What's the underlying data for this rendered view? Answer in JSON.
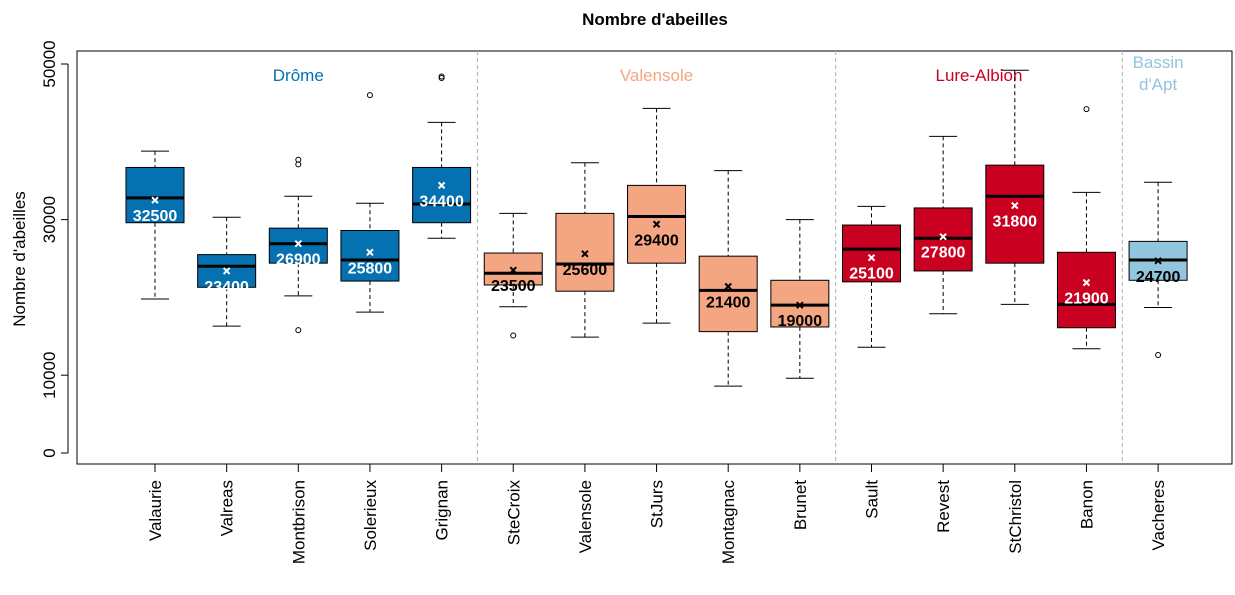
{
  "chart_data": {
    "type": "boxplot",
    "title": "Nombre d'abeilles",
    "ylabel": "Nombre d'abeilles",
    "xlabel": "",
    "ylim": [
      -2000,
      52000
    ],
    "yticks": [
      0,
      10000,
      30000,
      50000
    ],
    "grid": false,
    "groups": [
      {
        "label": "Drôme",
        "color": "#0571b0",
        "text_color": "#0571b0",
        "members": [
          0,
          4
        ]
      },
      {
        "label": "Valensole",
        "color": "#f4a582",
        "text_color": "#f4a582",
        "members": [
          5,
          9
        ]
      },
      {
        "label": "Lure-Albion",
        "color": "#ca0020",
        "text_color": "#ca0020",
        "members": [
          10,
          13
        ]
      },
      {
        "label": "Bassin\nd'Apt",
        "color": "#92c5de",
        "text_color": "#92c5de",
        "members": [
          14,
          14
        ]
      }
    ],
    "boxes": [
      {
        "name": "Valaurie",
        "group": 0,
        "whisker_low": 19800,
        "q1": 29600,
        "median": 32800,
        "q3": 36700,
        "whisker_high": 38800,
        "mean": 32500,
        "mean_label": "32500",
        "label_color": "#ffffff",
        "outliers": []
      },
      {
        "name": "Valreas",
        "group": 0,
        "whisker_low": 16300,
        "q1": 21300,
        "median": 24000,
        "q3": 25500,
        "whisker_high": 30300,
        "mean": 23400,
        "mean_label": "23400",
        "label_color": "#ffffff",
        "outliers": []
      },
      {
        "name": "Montbrison",
        "group": 0,
        "whisker_low": 20200,
        "q1": 24400,
        "median": 26900,
        "q3": 28900,
        "whisker_high": 33000,
        "mean": 26900,
        "mean_label": "26900",
        "label_color": "#ffffff",
        "outliers": [
          15800,
          37100,
          37700
        ]
      },
      {
        "name": "Solerieux",
        "group": 0,
        "whisker_low": 18100,
        "q1": 22100,
        "median": 24800,
        "q3": 28600,
        "whisker_high": 32100,
        "mean": 25800,
        "mean_label": "25800",
        "label_color": "#ffffff",
        "outliers": [
          46000
        ]
      },
      {
        "name": "Grignan",
        "group": 0,
        "whisker_low": 27600,
        "q1": 29600,
        "median": 32000,
        "q3": 36700,
        "whisker_high": 42500,
        "mean": 34400,
        "mean_label": "34400",
        "label_color": "#ffffff",
        "outliers": [
          48200,
          48400
        ]
      },
      {
        "name": "SteCroix",
        "group": 1,
        "whisker_low": 18800,
        "q1": 21600,
        "median": 23100,
        "q3": 25700,
        "whisker_high": 30800,
        "mean": 23500,
        "mean_label": "23500",
        "label_color": "#000000",
        "outliers": [
          15100
        ]
      },
      {
        "name": "Valensole",
        "group": 1,
        "whisker_low": 14900,
        "q1": 20800,
        "median": 24300,
        "q3": 30800,
        "whisker_high": 37300,
        "mean": 25600,
        "mean_label": "25600",
        "label_color": "#000000",
        "outliers": []
      },
      {
        "name": "StJurs",
        "group": 1,
        "whisker_low": 16700,
        "q1": 24400,
        "median": 30400,
        "q3": 34400,
        "whisker_high": 44300,
        "mean": 29400,
        "mean_label": "29400",
        "label_color": "#000000",
        "outliers": []
      },
      {
        "name": "Montagnac",
        "group": 1,
        "whisker_low": 8600,
        "q1": 15600,
        "median": 20900,
        "q3": 25300,
        "whisker_high": 36300,
        "mean": 21400,
        "mean_label": "21400",
        "label_color": "#000000",
        "outliers": []
      },
      {
        "name": "Brunet",
        "group": 1,
        "whisker_low": 9600,
        "q1": 16200,
        "median": 19000,
        "q3": 22200,
        "whisker_high": 30000,
        "mean": 19000,
        "mean_label": "19000",
        "label_color": "#000000",
        "outliers": []
      },
      {
        "name": "Sault",
        "group": 2,
        "whisker_low": 13600,
        "q1": 22000,
        "median": 26200,
        "q3": 29300,
        "whisker_high": 31700,
        "mean": 25100,
        "mean_label": "25100",
        "label_color": "#ffffff",
        "outliers": []
      },
      {
        "name": "Revest",
        "group": 2,
        "whisker_low": 17900,
        "q1": 23400,
        "median": 27600,
        "q3": 31500,
        "whisker_high": 40700,
        "mean": 27800,
        "mean_label": "27800",
        "label_color": "#ffffff",
        "outliers": []
      },
      {
        "name": "StChristol",
        "group": 2,
        "whisker_low": 19100,
        "q1": 24400,
        "median": 33000,
        "q3": 37000,
        "whisker_high": 49200,
        "mean": 31800,
        "mean_label": "31800",
        "label_color": "#ffffff",
        "outliers": []
      },
      {
        "name": "Banon",
        "group": 2,
        "whisker_low": 13400,
        "q1": 16100,
        "median": 19100,
        "q3": 25800,
        "whisker_high": 33500,
        "mean": 21900,
        "mean_label": "21900",
        "label_color": "#ffffff",
        "outliers": [
          44200
        ]
      },
      {
        "name": "Vacheres",
        "group": 3,
        "whisker_low": 18700,
        "q1": 22200,
        "median": 24800,
        "q3": 27200,
        "whisker_high": 34800,
        "mean": 24700,
        "mean_label": "24700",
        "label_color": "#000000",
        "outliers": [
          12600
        ]
      }
    ]
  }
}
